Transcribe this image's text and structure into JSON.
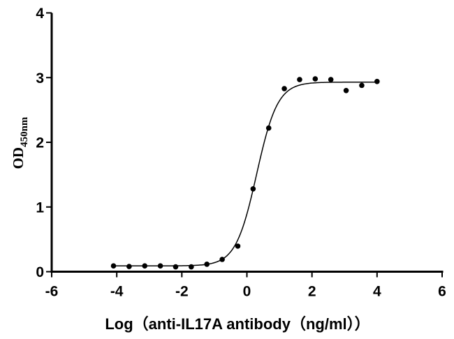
{
  "chart_data": {
    "type": "scatter",
    "title": "",
    "xlabel": "Log（anti-IL17A antibody（ng/ml））",
    "ylabel_main": "OD",
    "ylabel_sub": "450nm",
    "xlim": [
      -6,
      6
    ],
    "ylim": [
      0,
      4
    ],
    "xticks": [
      -6,
      -4,
      -2,
      0,
      2,
      4,
      6
    ],
    "yticks": [
      0,
      1,
      2,
      3,
      4
    ],
    "grid": false,
    "point_color": "#000000",
    "curve_color": "#000000",
    "points": {
      "x": [
        -4.1,
        -3.62,
        -3.14,
        -2.66,
        -2.19,
        -1.71,
        -1.23,
        -0.76,
        -0.28,
        0.19,
        0.67,
        1.15,
        1.62,
        2.1,
        2.58,
        3.05,
        3.53,
        4.0
      ],
      "y": [
        0.09,
        0.08,
        0.09,
        0.09,
        0.075,
        0.075,
        0.115,
        0.19,
        0.395,
        1.28,
        2.22,
        2.83,
        2.97,
        2.98,
        2.97,
        2.8,
        2.88,
        2.94
      ]
    },
    "fit": {
      "model": "four-parameter logistic",
      "bottom": 0.09,
      "top": 2.93,
      "logEC50": 0.3,
      "hill": 1.35
    }
  }
}
